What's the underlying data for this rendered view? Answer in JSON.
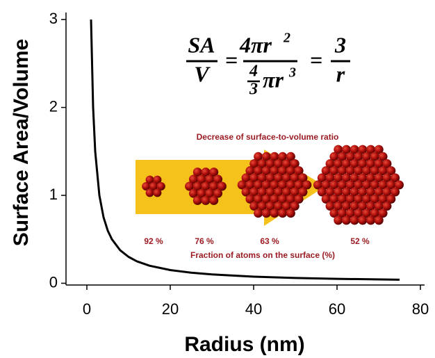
{
  "chart_data": {
    "type": "line",
    "x_label": "Radius (nm)",
    "y_label": "Surface Area/Volume",
    "x": [
      1,
      1.5,
      2,
      3,
      4,
      5,
      6,
      8,
      10,
      12,
      15,
      20,
      25,
      30,
      40,
      50,
      60,
      75
    ],
    "series": [
      {
        "color": "#000000",
        "values": [
          3,
          2,
          1.5,
          1,
          0.75,
          0.6,
          0.5,
          0.375,
          0.3,
          0.25,
          0.2,
          0.15,
          0.12,
          0.1,
          0.075,
          0.06,
          0.05,
          0.04
        ]
      }
    ],
    "xlim": [
      -5,
      81
    ],
    "xticks": [
      0,
      20,
      40,
      60,
      80
    ],
    "ylim": [
      -0.02,
      3.08
    ],
    "yticks": [
      0,
      1,
      2,
      3
    ],
    "formula": {
      "lhs_num": "SA",
      "lhs_den": "V",
      "equals": "=",
      "mid_num": "4πr",
      "mid_num_exp": "2",
      "mid_den_frac_num": "4",
      "mid_den_frac_den": "3",
      "mid_den": "πr",
      "mid_den_exp": "3",
      "rhs_num": "3",
      "rhs_den": "r"
    },
    "inset": {
      "title": "Decrease of surface-to-volume ratio",
      "fractions": [
        "92 %",
        "76 %",
        "63 %",
        "52 %"
      ],
      "caption": "Fraction of atoms on the surface (%)"
    }
  }
}
